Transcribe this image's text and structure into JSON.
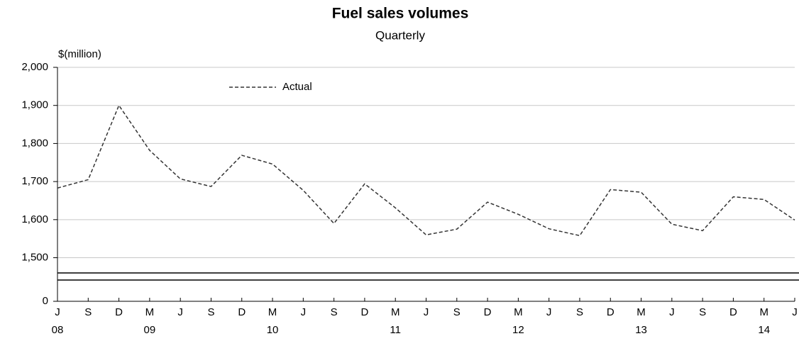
{
  "chart_data": {
    "type": "line",
    "title": "Fuel sales volumes",
    "subtitle": "Quarterly",
    "y_label": "$(million)",
    "categories": [
      "J",
      "S",
      "D",
      "M",
      "J",
      "S",
      "D",
      "M",
      "J",
      "S",
      "D",
      "M",
      "J",
      "S",
      "D",
      "M",
      "J",
      "S",
      "D",
      "M",
      "J",
      "S",
      "D",
      "M",
      "J"
    ],
    "year_labels": [
      "08",
      null,
      null,
      "09",
      null,
      null,
      null,
      "10",
      null,
      null,
      null,
      "11",
      null,
      null,
      null,
      "12",
      null,
      null,
      null,
      "13",
      null,
      null,
      null,
      "14",
      null
    ],
    "series": [
      {
        "name": "Actual",
        "color": "#333333",
        "dashed": true,
        "values": [
          1683,
          1705,
          1900,
          1782,
          1707,
          1687,
          1769,
          1746,
          1677,
          1590,
          1694,
          1631,
          1560,
          1575,
          1646,
          1614,
          1576,
          1558,
          1679,
          1672,
          1588,
          1571,
          1660,
          1653,
          1599
        ]
      }
    ],
    "ylim": [
      1460,
      2000
    ],
    "yticks": [
      0,
      {
        "value": 1500,
        "label": "1,500"
      },
      {
        "value": 1600,
        "label": "1,600"
      },
      {
        "value": 1700,
        "label": "1,700"
      },
      {
        "value": 1800,
        "label": "1,800"
      },
      {
        "value": 1900,
        "label": "1,900"
      },
      {
        "value": 2000,
        "label": "2,000"
      }
    ],
    "grid": true,
    "axis_break": true,
    "legend": "top-left"
  }
}
